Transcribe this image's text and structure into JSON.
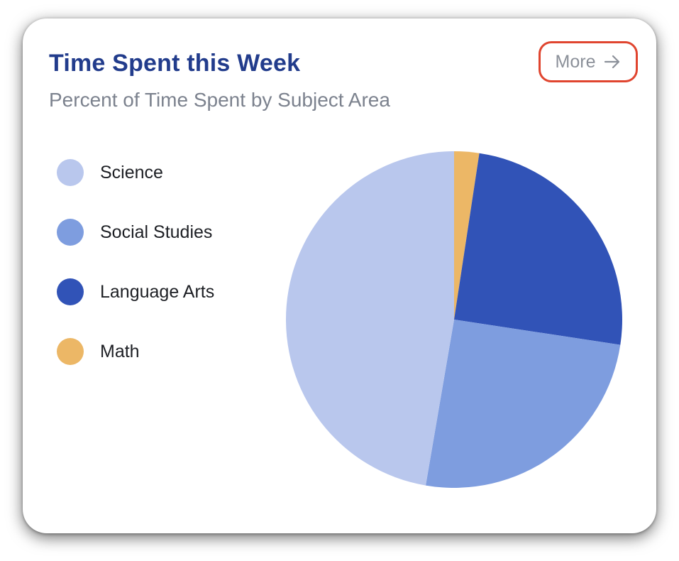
{
  "card": {
    "title": "Time Spent this Week",
    "subtitle": "Percent of Time Spent by Subject Area",
    "more_label": "More",
    "more_icon": "arrow-right-icon"
  },
  "chart_data": {
    "type": "pie",
    "start_angle_deg": 0,
    "direction": "clockwise",
    "slices": [
      {
        "label": "Math",
        "value": 2.4,
        "color": "#ecb766"
      },
      {
        "label": "Language Arts",
        "value": 25.0,
        "color": "#3153b7"
      },
      {
        "label": "Social Studies",
        "value": 25.3,
        "color": "#7e9ddf"
      },
      {
        "label": "Science",
        "value": 47.3,
        "color": "#b9c7ed"
      }
    ],
    "legend": {
      "placement": "left",
      "entries": [
        {
          "label": "Science",
          "color": "#b9c7ed"
        },
        {
          "label": "Social Studies",
          "color": "#7e9ddf"
        },
        {
          "label": "Language Arts",
          "color": "#3153b7"
        },
        {
          "label": "Math",
          "color": "#ecb766"
        }
      ]
    }
  },
  "colors": {
    "title": "#223c8c",
    "subtitle": "#7c828e",
    "more_button_border": "#e0452f",
    "more_button_text": "#8b9099"
  }
}
